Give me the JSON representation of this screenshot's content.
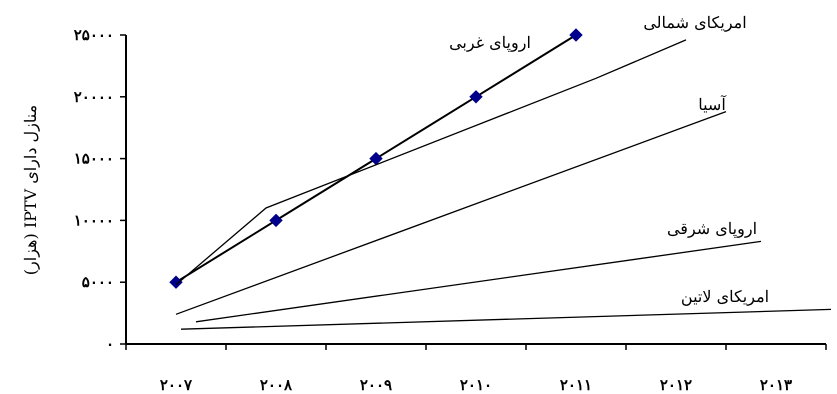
{
  "chart_data": {
    "type": "line",
    "ylabel": "منازل دارای IPTV (هزار)",
    "x_ticks": [
      "۲۰۰۷",
      "۲۰۰۸",
      "۲۰۰۹",
      "۲۰۱۰",
      "۲۰۱۱",
      "۲۰۱۲",
      "۲۰۱۳"
    ],
    "y_ticks": [
      "۰",
      "۵۰۰۰",
      "۱۰۰۰۰",
      "۱۵۰۰۰",
      "۲۰۰۰۰",
      "۲۵۰۰۰"
    ],
    "xlim": [
      2006.5,
      2013.5
    ],
    "ylim": [
      0,
      25000
    ],
    "series": [
      {
        "name": "اروپای غربی",
        "x": [
          2007,
          2008,
          2009,
          2010,
          2011
        ],
        "y": [
          5000,
          10000,
          15000,
          20000,
          25000
        ],
        "markers": true
      },
      {
        "name": "امریکای شمالی",
        "x": [
          2007,
          2007.9,
          2011.2,
          2012.1
        ],
        "y": [
          4800,
          11000,
          21500,
          24600
        ]
      },
      {
        "name": "آسیا",
        "x": [
          2007,
          2012.5
        ],
        "y": [
          2400,
          18800
        ]
      },
      {
        "name": "اروپای شرقی",
        "x": [
          2007.2,
          2012.85
        ],
        "y": [
          1800,
          8300
        ]
      },
      {
        "name": "امریکای لاتین",
        "x": [
          2007.05,
          2013.55
        ],
        "y": [
          1200,
          2800
        ]
      }
    ],
    "marker_color": "#00008b",
    "line_color": "#000000",
    "grid": false
  }
}
